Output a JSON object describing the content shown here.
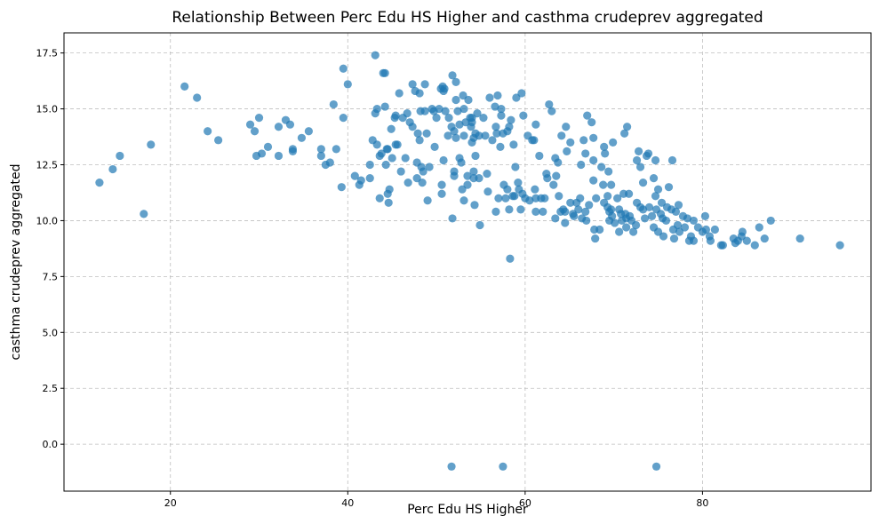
{
  "chart_data": {
    "type": "scatter",
    "title": "Relationship Between Perc Edu HS Higher and casthma crudeprev aggregated",
    "xlabel": "Perc Edu HS Higher",
    "ylabel": "casthma crudeprev aggregated",
    "xlim": [
      8,
      99
    ],
    "ylim": [
      -2.1,
      18.4
    ],
    "xticks": [
      20,
      40,
      60,
      80
    ],
    "yticks": [
      0.0,
      2.5,
      5.0,
      7.5,
      10.0,
      12.5,
      15.0,
      17.5
    ],
    "grid": true,
    "point_color": "#1f77b4",
    "points": [
      [
        12,
        11.7
      ],
      [
        13.5,
        12.3
      ],
      [
        14.3,
        12.9
      ],
      [
        17,
        10.3
      ],
      [
        17.8,
        13.4
      ],
      [
        21.6,
        16
      ],
      [
        23,
        15.5
      ],
      [
        24.2,
        14
      ],
      [
        25.4,
        13.6
      ],
      [
        29,
        14.3
      ],
      [
        29.5,
        14
      ],
      [
        29.7,
        12.9
      ],
      [
        30,
        14.6
      ],
      [
        30.3,
        13
      ],
      [
        31,
        13.3
      ],
      [
        32.2,
        14.2
      ],
      [
        32.2,
        12.9
      ],
      [
        33,
        14.5
      ],
      [
        33.5,
        14.3
      ],
      [
        33.8,
        13.2
      ],
      [
        33.8,
        13.1
      ],
      [
        34.8,
        13.7
      ],
      [
        35.6,
        14
      ],
      [
        37,
        13.2
      ],
      [
        37,
        12.9
      ],
      [
        37.5,
        12.5
      ],
      [
        38,
        12.6
      ],
      [
        38.4,
        15.2
      ],
      [
        38.7,
        13.2
      ],
      [
        39.3,
        11.5
      ],
      [
        39.5,
        14.6
      ],
      [
        39.5,
        16.8
      ],
      [
        40,
        16.1
      ],
      [
        40.8,
        12
      ],
      [
        41.3,
        11.6
      ],
      [
        41.5,
        11.8
      ],
      [
        42.5,
        11.9
      ],
      [
        42.5,
        12.5
      ],
      [
        42.8,
        13.6
      ],
      [
        43.1,
        17.4
      ],
      [
        43.1,
        14.8
      ],
      [
        43.3,
        15
      ],
      [
        43.3,
        13.4
      ],
      [
        43.6,
        12.9
      ],
      [
        43.8,
        13
      ],
      [
        43.6,
        11
      ],
      [
        44,
        16.6
      ],
      [
        44.2,
        16.6
      ],
      [
        44.2,
        15.1
      ],
      [
        44.3,
        12.5
      ],
      [
        44.4,
        13.2
      ],
      [
        44.5,
        13.2
      ],
      [
        44.6,
        10.8
      ],
      [
        44.7,
        11.4
      ],
      [
        44.9,
        14.1
      ],
      [
        45,
        12.8
      ],
      [
        45.3,
        14.6
      ],
      [
        45.4,
        14.7
      ],
      [
        45.4,
        13.4
      ],
      [
        45.6,
        13.4
      ],
      [
        45.8,
        15.7
      ],
      [
        46,
        12.2
      ],
      [
        46.2,
        14.6
      ],
      [
        46.5,
        12.8
      ],
      [
        46.7,
        14.8
      ],
      [
        46.8,
        11.7
      ],
      [
        47,
        14.4
      ],
      [
        47.3,
        16.1
      ],
      [
        47.3,
        14.2
      ],
      [
        47.6,
        15.8
      ],
      [
        47.8,
        12.6
      ],
      [
        47.8,
        11.9
      ],
      [
        47.9,
        13.9
      ],
      [
        48.1,
        15.7
      ],
      [
        48.1,
        13.6
      ],
      [
        48.2,
        14.9
      ],
      [
        48.3,
        12.4
      ],
      [
        48.4,
        11.7
      ],
      [
        48.5,
        12.2
      ],
      [
        48.7,
        16.1
      ],
      [
        48.7,
        14.9
      ],
      [
        48.9,
        13.9
      ],
      [
        49.2,
        12.4
      ],
      [
        49.5,
        15
      ],
      [
        49.7,
        14.9
      ],
      [
        49.8,
        13.3
      ],
      [
        50,
        14.6
      ],
      [
        50.3,
        15
      ],
      [
        50.5,
        15.9
      ],
      [
        50.6,
        11.6
      ],
      [
        50.6,
        11.2
      ],
      [
        50.7,
        16
      ],
      [
        50.8,
        12.7
      ],
      [
        50.8,
        15.8
      ],
      [
        50.9,
        15.9
      ],
      [
        51,
        14.9
      ],
      [
        51.3,
        13.8
      ],
      [
        51.4,
        14.6
      ],
      [
        51.7,
        14.2
      ],
      [
        51.8,
        10.1
      ],
      [
        51.8,
        16.5
      ],
      [
        52,
        14
      ],
      [
        52,
        12.2
      ],
      [
        52,
        12
      ],
      [
        52.2,
        16.2
      ],
      [
        52.2,
        15.4
      ],
      [
        52.2,
        13.7
      ],
      [
        52.4,
        14.9
      ],
      [
        52.6,
        14.3
      ],
      [
        52.6,
        12.8
      ],
      [
        52.8,
        12.6
      ],
      [
        52.9,
        11.4
      ],
      [
        53,
        15.6
      ],
      [
        53.1,
        15
      ],
      [
        53.1,
        13.8
      ],
      [
        53.1,
        10.9
      ],
      [
        53.3,
        14.4
      ],
      [
        53.5,
        12
      ],
      [
        53.5,
        11.6
      ],
      [
        53.6,
        15.4
      ],
      [
        53.8,
        14.6
      ],
      [
        53.9,
        14.2
      ],
      [
        54,
        14.4
      ],
      [
        54,
        13.5
      ],
      [
        54,
        14.6
      ],
      [
        54.2,
        13.7
      ],
      [
        54.2,
        12.2
      ],
      [
        54.2,
        11.9
      ],
      [
        54.3,
        10.7
      ],
      [
        54.4,
        13.9
      ],
      [
        54.4,
        12.9
      ],
      [
        54.6,
        14.8
      ],
      [
        54.8,
        13.8
      ],
      [
        54.8,
        11.9
      ],
      [
        54.9,
        9.8
      ],
      [
        55.3,
        14.6
      ],
      [
        55.5,
        13.8
      ],
      [
        55.7,
        12.1
      ],
      [
        56,
        15.5
      ],
      [
        56.3,
        13.6
      ],
      [
        56.6,
        15.1
      ],
      [
        56.7,
        10.4
      ],
      [
        56.7,
        14.2
      ],
      [
        56.8,
        13.9
      ],
      [
        56.9,
        15.6
      ],
      [
        57,
        11
      ],
      [
        57.2,
        13.3
      ],
      [
        57.3,
        15
      ],
      [
        57.3,
        14.7
      ],
      [
        57.5,
        13.9
      ],
      [
        57.6,
        11.6
      ],
      [
        57.8,
        11
      ],
      [
        58,
        14
      ],
      [
        58,
        11.4
      ],
      [
        58.2,
        14.2
      ],
      [
        58.2,
        10.5
      ],
      [
        58.3,
        8.3
      ],
      [
        58.4,
        14.5
      ],
      [
        58.6,
        11.1
      ],
      [
        58.7,
        13.4
      ],
      [
        58.8,
        11.1
      ],
      [
        58.9,
        12.4
      ],
      [
        59,
        15.5
      ],
      [
        59.2,
        11.7
      ],
      [
        59.3,
        11.4
      ],
      [
        59.5,
        10.5
      ],
      [
        59.6,
        15.7
      ],
      [
        59.7,
        11.2
      ],
      [
        59.8,
        14.7
      ],
      [
        60,
        11
      ],
      [
        60.3,
        13.8
      ],
      [
        60.5,
        10.9
      ],
      [
        60.8,
        13.6
      ],
      [
        61,
        13.6
      ],
      [
        61.1,
        11.4
      ],
      [
        61.2,
        14.3
      ],
      [
        61.2,
        11
      ],
      [
        61.2,
        10.4
      ],
      [
        61.6,
        12.9
      ],
      [
        61.8,
        11
      ],
      [
        62,
        10.4
      ],
      [
        62.2,
        11
      ],
      [
        62.4,
        12.1
      ],
      [
        62.7,
        15.2
      ],
      [
        63,
        14.9
      ],
      [
        63.2,
        11.6
      ],
      [
        63.4,
        10.1
      ],
      [
        63.4,
        12.8
      ],
      [
        63.5,
        12
      ],
      [
        63.7,
        12.6
      ],
      [
        63.8,
        11.1
      ],
      [
        64,
        10.4
      ],
      [
        64.1,
        13.8
      ],
      [
        64.3,
        10.5
      ],
      [
        64.5,
        10.4
      ],
      [
        64.5,
        9.9
      ],
      [
        64.6,
        14.2
      ],
      [
        64.7,
        13.1
      ],
      [
        65.1,
        13.5
      ],
      [
        65.1,
        10.8
      ],
      [
        65.4,
        10.3
      ],
      [
        65.5,
        10.2
      ],
      [
        65.8,
        10.8
      ],
      [
        66,
        10.5
      ],
      [
        66.2,
        11
      ],
      [
        66.4,
        10.1
      ],
      [
        66.6,
        13.6
      ],
      [
        66.8,
        13
      ],
      [
        66.8,
        10.4
      ],
      [
        66.9,
        10
      ],
      [
        67,
        14.7
      ],
      [
        67.2,
        10.7
      ],
      [
        67.5,
        14.4
      ],
      [
        67.7,
        13.7
      ],
      [
        67.7,
        11.8
      ],
      [
        67.7,
        12.7
      ],
      [
        67.8,
        9.6
      ],
      [
        67.9,
        9.2
      ],
      [
        68,
        11
      ],
      [
        68.4,
        9.6
      ],
      [
        68.6,
        12.4
      ],
      [
        68.8,
        11.6
      ],
      [
        68.9,
        13.3
      ],
      [
        68.9,
        10.8
      ],
      [
        69,
        13
      ],
      [
        69.3,
        11.1
      ],
      [
        69.3,
        10.6
      ],
      [
        69.4,
        12.2
      ],
      [
        69.5,
        10
      ],
      [
        69.5,
        10.4
      ],
      [
        69.7,
        11.6
      ],
      [
        69.7,
        10.5
      ],
      [
        69.8,
        10.2
      ],
      [
        69.9,
        13.5
      ],
      [
        70.1,
        9.9
      ],
      [
        70.4,
        11
      ],
      [
        70.6,
        10.5
      ],
      [
        70.6,
        9.5
      ],
      [
        70.8,
        10.3
      ],
      [
        70.9,
        10
      ],
      [
        71.1,
        11.2
      ],
      [
        71.2,
        13.9
      ],
      [
        71.3,
        10.3
      ],
      [
        71.4,
        9.7
      ],
      [
        71.4,
        10.1
      ],
      [
        71.5,
        14.2
      ],
      [
        71.7,
        11.2
      ],
      [
        71.8,
        10.2
      ],
      [
        72,
        10
      ],
      [
        72.2,
        9.5
      ],
      [
        72.5,
        9.8
      ],
      [
        72.6,
        12.7
      ],
      [
        72.6,
        10.8
      ],
      [
        72.8,
        13.1
      ],
      [
        73,
        12.4
      ],
      [
        73,
        10.6
      ],
      [
        73.3,
        10.5
      ],
      [
        73.3,
        11.7
      ],
      [
        73.5,
        10.1
      ],
      [
        73.7,
        12.9
      ],
      [
        73.9,
        13
      ],
      [
        74,
        10.6
      ],
      [
        74.3,
        10.2
      ],
      [
        74.5,
        11.9
      ],
      [
        74.5,
        9.7
      ],
      [
        74.7,
        12.7
      ],
      [
        74.7,
        11.1
      ],
      [
        74.8,
        10.5
      ],
      [
        75,
        9.5
      ],
      [
        75,
        11.4
      ],
      [
        75.3,
        10.3
      ],
      [
        75.4,
        10.8
      ],
      [
        75.5,
        10.1
      ],
      [
        75.6,
        9.3
      ],
      [
        75.9,
        10
      ],
      [
        76,
        10.6
      ],
      [
        76.2,
        11.5
      ],
      [
        76.5,
        10.5
      ],
      [
        76.6,
        12.7
      ],
      [
        76.7,
        9.6
      ],
      [
        76.8,
        9.2
      ],
      [
        77,
        10.4
      ],
      [
        77.2,
        9.8
      ],
      [
        77.3,
        10.7
      ],
      [
        77.4,
        9.5
      ],
      [
        77.8,
        10.2
      ],
      [
        78,
        9.7
      ],
      [
        78.3,
        10.1
      ],
      [
        78.5,
        9.1
      ],
      [
        78.7,
        9.3
      ],
      [
        79,
        9.1
      ],
      [
        79,
        10
      ],
      [
        79.5,
        9.7
      ],
      [
        80,
        9.5
      ],
      [
        80.3,
        10.2
      ],
      [
        80.4,
        9.6
      ],
      [
        80.8,
        9.3
      ],
      [
        80.9,
        9.1
      ],
      [
        81.4,
        9.6
      ],
      [
        82.1,
        8.9
      ],
      [
        82.3,
        8.9
      ],
      [
        83.5,
        9.2
      ],
      [
        83.7,
        9
      ],
      [
        84,
        9.1
      ],
      [
        84.4,
        9.3
      ],
      [
        84.5,
        9.5
      ],
      [
        85,
        9.1
      ],
      [
        85.9,
        8.9
      ],
      [
        86.4,
        9.7
      ],
      [
        87,
        9.2
      ],
      [
        87.7,
        10
      ],
      [
        91,
        9.2
      ],
      [
        95.5,
        8.9
      ],
      [
        44.5,
        11.2
      ],
      [
        49,
        10.9
      ],
      [
        55.8,
        11.3
      ],
      [
        62.5,
        11.9
      ],
      [
        66.3,
        12.5
      ],
      [
        51.7,
        -1
      ],
      [
        57.5,
        -1
      ],
      [
        74.8,
        -1
      ]
    ]
  }
}
